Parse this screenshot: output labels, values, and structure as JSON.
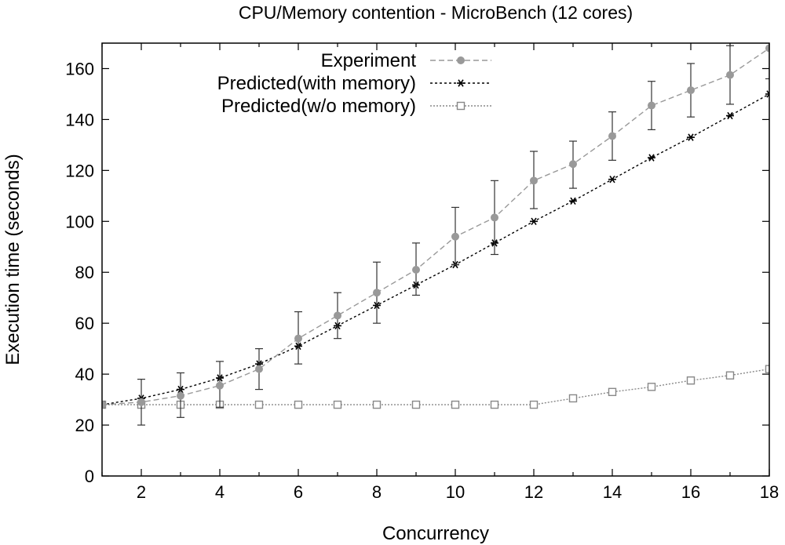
{
  "chart_data": {
    "type": "line",
    "title": "CPU/Memory contention - MicroBench (12 cores)",
    "xlabel": "Concurrency",
    "ylabel": "Execution time (seconds)",
    "xlim": [
      1,
      18
    ],
    "ylim": [
      0,
      170
    ],
    "xticks": [
      2,
      4,
      6,
      8,
      10,
      12,
      14,
      16,
      18
    ],
    "yticks": [
      0,
      20,
      40,
      60,
      80,
      100,
      120,
      140,
      160
    ],
    "grid": false,
    "legend_position": "top-left",
    "x": [
      1,
      2,
      3,
      4,
      5,
      6,
      7,
      8,
      9,
      10,
      11,
      12,
      13,
      14,
      15,
      16,
      17,
      18
    ],
    "series": [
      {
        "name": "Experiment",
        "color": "#999999",
        "marker": "circle",
        "dash": "dashed",
        "values": [
          28,
          29,
          31.5,
          35.5,
          42,
          54,
          63,
          72,
          81,
          94,
          101.5,
          116,
          122.5,
          133.5,
          145.5,
          151.5,
          157.5,
          168
        ],
        "error_low": [
          28,
          20,
          23,
          27,
          34,
          44,
          54,
          60,
          71,
          83,
          87,
          105,
          113,
          124,
          136,
          141,
          146,
          156
        ],
        "error_high": [
          28,
          38,
          40.5,
          45,
          50,
          64.5,
          72,
          84,
          91.5,
          105.5,
          116,
          127.5,
          131.5,
          143,
          155,
          162,
          169,
          170
        ]
      },
      {
        "name": "Predicted(with memory)",
        "color": "#000000",
        "marker": "star",
        "dash": "dotted-dense",
        "values": [
          28,
          30.5,
          34,
          38.5,
          44,
          51,
          59,
          67,
          75,
          83,
          91.5,
          100,
          108,
          116.5,
          125,
          133,
          141.5,
          150
        ]
      },
      {
        "name": "Predicted(w/o memory)",
        "color": "#888888",
        "marker": "square",
        "dash": "dotted",
        "values": [
          28,
          28,
          28,
          28,
          28,
          28,
          28,
          28,
          28,
          28,
          28,
          28,
          30.5,
          33,
          35,
          37.5,
          39.5,
          42
        ]
      }
    ]
  }
}
